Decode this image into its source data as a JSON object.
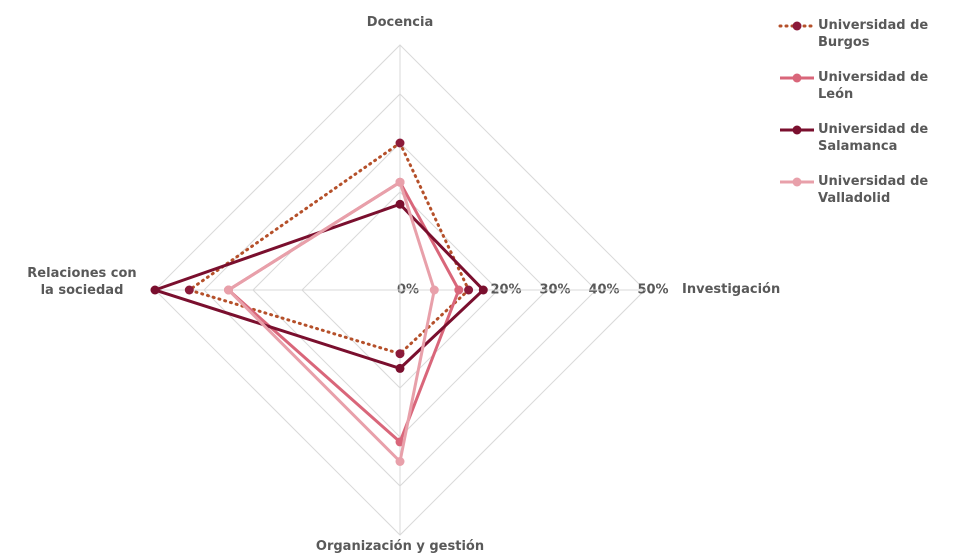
{
  "chart_data": {
    "type": "radar",
    "categories": [
      "Docencia",
      "Investigación",
      "Organización y gestión",
      "Relaciones con la sociedad"
    ],
    "ylim": [
      0,
      50
    ],
    "yticks": [
      {
        "value": 0,
        "label": "0%"
      },
      {
        "value": 20,
        "label": "20%"
      },
      {
        "value": 30,
        "label": "30%"
      },
      {
        "value": 40,
        "label": "40%"
      },
      {
        "value": 50,
        "label": "50%"
      }
    ],
    "grid": true,
    "legend": "top-right",
    "series": [
      {
        "name": "Universidad de Burgos",
        "color": "#b5502a",
        "marker_color": "#8b1a3a",
        "dash": "dot",
        "values": [
          30,
          14,
          13,
          43
        ]
      },
      {
        "name": "Universidad de León",
        "color": "#d9667a",
        "values": [
          22,
          12,
          31,
          35
        ]
      },
      {
        "name": "Universidad de Salamanca",
        "color": "#7a0f2e",
        "values": [
          17.5,
          17,
          16,
          50
        ]
      },
      {
        "name": "Universidad de Valladolid",
        "color": "#e8a0aa",
        "values": [
          22,
          7,
          35,
          35
        ]
      }
    ]
  }
}
